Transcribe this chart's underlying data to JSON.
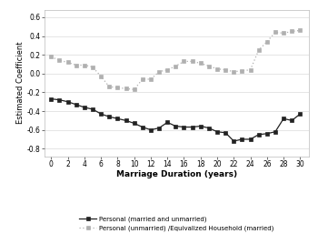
{
  "x": [
    0,
    1,
    2,
    3,
    4,
    5,
    6,
    7,
    8,
    9,
    10,
    11,
    12,
    13,
    14,
    15,
    16,
    17,
    18,
    19,
    20,
    21,
    22,
    23,
    24,
    25,
    26,
    27,
    28,
    29,
    30
  ],
  "series1": [
    -0.27,
    -0.28,
    -0.3,
    -0.33,
    -0.36,
    -0.38,
    -0.43,
    -0.46,
    -0.48,
    -0.5,
    -0.53,
    -0.57,
    -0.6,
    -0.58,
    -0.52,
    -0.56,
    -0.57,
    -0.57,
    -0.56,
    -0.58,
    -0.62,
    -0.63,
    -0.72,
    -0.7,
    -0.7,
    -0.65,
    -0.64,
    -0.62,
    -0.48,
    -0.5,
    -0.43
  ],
  "series2": [
    0.18,
    0.14,
    0.12,
    0.09,
    0.09,
    0.07,
    -0.03,
    -0.14,
    -0.15,
    -0.16,
    -0.17,
    -0.06,
    -0.06,
    0.02,
    0.04,
    0.08,
    0.13,
    0.13,
    0.11,
    0.08,
    0.05,
    0.04,
    0.02,
    0.03,
    0.04,
    0.25,
    0.34,
    0.44,
    0.43,
    0.45,
    0.46
  ],
  "xlabel": "Marriage Duration (years)",
  "ylabel": "Estimated Coefficient",
  "xticks": [
    0,
    2,
    4,
    6,
    8,
    10,
    12,
    14,
    16,
    18,
    20,
    22,
    24,
    26,
    28,
    30
  ],
  "yticks": [
    -0.8,
    -0.6,
    -0.4,
    -0.2,
    0.0,
    0.2,
    0.4,
    0.6
  ],
  "ylim": [
    -0.88,
    0.68
  ],
  "xlim": [
    -0.8,
    31.0
  ],
  "legend1": "Personal (married and unmarried)",
  "legend2": "Personal (unmarried) /Equivalized Household (married)",
  "color1": "#222222",
  "color2": "#b0b0b0",
  "bg_color": "#ffffff",
  "grid_color": "#e0e0e0"
}
